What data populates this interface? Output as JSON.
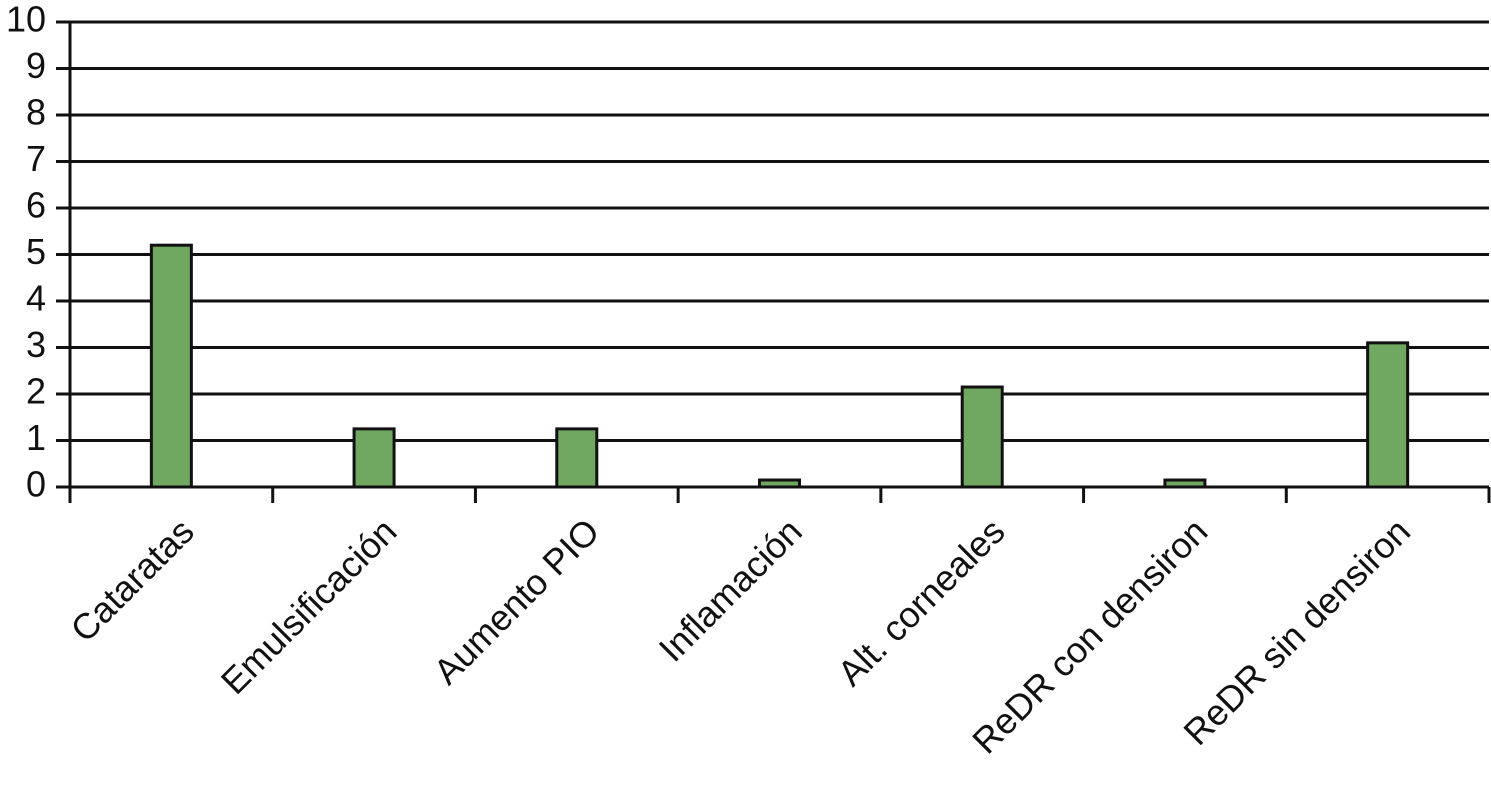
{
  "chart_data": {
    "type": "bar",
    "categories": [
      "Cataratas",
      "Emulsificación",
      "Aumento PIO",
      "Inflamación",
      "Alt. corneales",
      "ReDR con densiron",
      "ReDR sin densiron"
    ],
    "values": [
      5.2,
      1.25,
      1.25,
      0.15,
      2.15,
      0.15,
      3.1
    ],
    "color": "#70a862",
    "ylim": [
      0,
      10
    ],
    "yticks": [
      0,
      1,
      2,
      3,
      4,
      5,
      6,
      7,
      8,
      9,
      10
    ],
    "grid": true
  }
}
